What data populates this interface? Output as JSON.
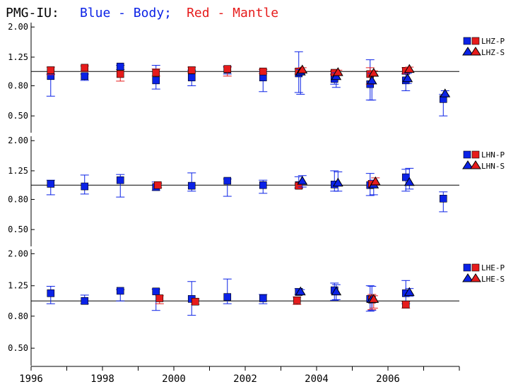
{
  "header": {
    "prefix": "PMG-IU:",
    "blue_label": "Blue - Body;",
    "red_label": "Red - Mantle"
  },
  "colors": {
    "body": "#0b22e6",
    "mantle": "#e61b1b",
    "axis": "#000000"
  },
  "chart_data": {
    "type": "scatter",
    "y_scale": "log",
    "x_ticks": [
      1996,
      1998,
      2000,
      2002,
      2004,
      2006
    ],
    "x_range": [
      1996,
      2008
    ],
    "y_ticks": [
      "0.50",
      "0.80",
      "1.25",
      "2.00"
    ],
    "y_range": [
      0.42,
      2.05
    ],
    "reference_line": 1.0,
    "panels": [
      {
        "name": "LHZ",
        "legend": [
          "LHZ-P",
          "LHZ-S"
        ],
        "series": [
          {
            "station": "LHZ-P",
            "kind": "body",
            "marker": "square",
            "points": [
              {
                "x": 1996.55,
                "y": 0.93,
                "lo": 0.68,
                "hi": 0.96
              },
              {
                "x": 1997.5,
                "y": 0.93,
                "lo": 0.87,
                "hi": 0.96
              },
              {
                "x": 1998.5,
                "y": 1.08,
                "lo": 1.03,
                "hi": 1.1
              },
              {
                "x": 1999.5,
                "y": 0.87,
                "lo": 0.76,
                "hi": 1.1
              },
              {
                "x": 2000.5,
                "y": 0.91,
                "lo": 0.8,
                "hi": 1.02
              },
              {
                "x": 2001.5,
                "y": 1.03,
                "lo": 0.96,
                "hi": 1.08
              },
              {
                "x": 2002.5,
                "y": 0.91,
                "lo": 0.73,
                "hi": 1.0
              },
              {
                "x": 2003.5,
                "y": 0.97,
                "lo": 0.72,
                "hi": 1.36
              },
              {
                "x": 2004.5,
                "y": 0.89,
                "lo": 0.82,
                "hi": 0.96
              },
              {
                "x": 2005.5,
                "y": 0.82,
                "lo": 0.64,
                "hi": 1.2
              },
              {
                "x": 2006.5,
                "y": 0.87,
                "lo": 0.74,
                "hi": 0.96
              },
              {
                "x": 2007.55,
                "y": 0.65,
                "lo": 0.5,
                "hi": 0.7
              }
            ]
          },
          {
            "station": "LHZ-P",
            "kind": "mantle",
            "marker": "square",
            "points": [
              {
                "x": 1996.55,
                "y": 1.02,
                "lo": 0.95,
                "hi": 1.07
              },
              {
                "x": 1997.5,
                "y": 1.06,
                "lo": 1.0,
                "hi": 1.09
              },
              {
                "x": 1998.5,
                "y": 0.96,
                "lo": 0.86,
                "hi": 1.0
              },
              {
                "x": 1999.5,
                "y": 0.98,
                "lo": 0.93,
                "hi": 1.04
              },
              {
                "x": 2000.5,
                "y": 1.02,
                "lo": 0.98,
                "hi": 1.07
              },
              {
                "x": 2001.5,
                "y": 1.04,
                "lo": 0.93,
                "hi": 1.07
              },
              {
                "x": 2002.5,
                "y": 1.0,
                "lo": 0.97,
                "hi": 1.03
              },
              {
                "x": 2003.5,
                "y": 1.0,
                "lo": 0.96,
                "hi": 1.04
              },
              {
                "x": 2004.5,
                "y": 0.98,
                "lo": 0.95,
                "hi": 1.01
              },
              {
                "x": 2005.5,
                "y": 0.96,
                "lo": 0.82,
                "hi": 1.06
              },
              {
                "x": 2006.5,
                "y": 1.01,
                "lo": 0.97,
                "hi": 1.06
              }
            ]
          },
          {
            "station": "LHZ-S",
            "kind": "body",
            "marker": "triangle",
            "points": [
              {
                "x": 2003.55,
                "y": 1.0,
                "lo": 0.7,
                "hi": 1.03
              },
              {
                "x": 2004.55,
                "y": 0.93,
                "lo": 0.78,
                "hi": 0.98
              },
              {
                "x": 2005.55,
                "y": 0.87,
                "lo": 0.64,
                "hi": 0.97
              },
              {
                "x": 2006.55,
                "y": 0.9,
                "lo": 0.83,
                "hi": 0.97
              },
              {
                "x": 2007.6,
                "y": 0.71,
                "lo": 0.69,
                "hi": 0.74
              }
            ]
          },
          {
            "station": "LHZ-S",
            "kind": "mantle",
            "marker": "triangle",
            "points": [
              {
                "x": 2003.6,
                "y": 1.03,
                "lo": 0.99,
                "hi": 1.06
              },
              {
                "x": 2004.6,
                "y": 0.99,
                "lo": 0.96,
                "hi": 1.02
              },
              {
                "x": 2005.6,
                "y": 0.98,
                "lo": 0.95,
                "hi": 1.01
              },
              {
                "x": 2006.6,
                "y": 1.04,
                "lo": 1.0,
                "hi": 1.07
              }
            ]
          }
        ]
      },
      {
        "name": "LHN",
        "legend": [
          "LHN-P",
          "LHN-S"
        ],
        "series": [
          {
            "station": "LHN-P",
            "kind": "body",
            "marker": "square",
            "points": [
              {
                "x": 1996.55,
                "y": 1.02,
                "lo": 0.86,
                "hi": 1.08
              },
              {
                "x": 1997.5,
                "y": 0.98,
                "lo": 0.87,
                "hi": 1.17
              },
              {
                "x": 1998.5,
                "y": 1.08,
                "lo": 0.83,
                "hi": 1.18
              },
              {
                "x": 1999.5,
                "y": 0.97,
                "lo": 0.92,
                "hi": 1.05
              },
              {
                "x": 2000.5,
                "y": 0.99,
                "lo": 0.91,
                "hi": 1.21
              },
              {
                "x": 2001.5,
                "y": 1.07,
                "lo": 0.84,
                "hi": 1.1
              },
              {
                "x": 2002.5,
                "y": 1.0,
                "lo": 0.88,
                "hi": 1.08
              },
              {
                "x": 2003.5,
                "y": 1.0,
                "lo": 0.95,
                "hi": 1.14
              },
              {
                "x": 2004.5,
                "y": 1.01,
                "lo": 0.91,
                "hi": 1.25
              },
              {
                "x": 2005.5,
                "y": 1.0,
                "lo": 0.85,
                "hi": 1.2
              },
              {
                "x": 2006.5,
                "y": 1.13,
                "lo": 0.91,
                "hi": 1.28
              },
              {
                "x": 2007.55,
                "y": 0.81,
                "lo": 0.66,
                "hi": 0.9
              }
            ]
          },
          {
            "station": "LHN-P",
            "kind": "mantle",
            "marker": "square",
            "points": [
              {
                "x": 1999.55,
                "y": 1.0,
                "lo": 0.96,
                "hi": 1.03
              },
              {
                "x": 2003.5,
                "y": 0.99,
                "lo": 0.96,
                "hi": 1.02
              },
              {
                "x": 2005.55,
                "y": 1.02,
                "lo": 0.97,
                "hi": 1.07
              }
            ]
          },
          {
            "station": "LHN-S",
            "kind": "body",
            "marker": "triangle",
            "points": [
              {
                "x": 2003.6,
                "y": 1.07,
                "lo": 0.97,
                "hi": 1.16
              },
              {
                "x": 2004.6,
                "y": 1.04,
                "lo": 0.91,
                "hi": 1.23
              },
              {
                "x": 2005.6,
                "y": 1.01,
                "lo": 0.86,
                "hi": 1.08
              },
              {
                "x": 2006.6,
                "y": 1.05,
                "lo": 0.94,
                "hi": 1.3
              }
            ]
          },
          {
            "station": "LHN-S",
            "kind": "mantle",
            "marker": "triangle",
            "points": [
              {
                "x": 2005.65,
                "y": 1.06,
                "lo": 1.0,
                "hi": 1.12
              }
            ]
          }
        ]
      },
      {
        "name": "LHE",
        "legend": [
          "LHE-P",
          "LHE-S"
        ],
        "series": [
          {
            "station": "LHE-P",
            "kind": "body",
            "marker": "square",
            "points": [
              {
                "x": 1996.55,
                "y": 1.12,
                "lo": 0.96,
                "hi": 1.24
              },
              {
                "x": 1997.5,
                "y": 1.0,
                "lo": 0.96,
                "hi": 1.09
              },
              {
                "x": 1998.5,
                "y": 1.16,
                "lo": 1.0,
                "hi": 1.18
              },
              {
                "x": 1999.5,
                "y": 1.15,
                "lo": 0.87,
                "hi": 1.19
              },
              {
                "x": 2000.5,
                "y": 1.03,
                "lo": 0.81,
                "hi": 1.33
              },
              {
                "x": 2001.5,
                "y": 1.06,
                "lo": 0.96,
                "hi": 1.38
              },
              {
                "x": 2002.5,
                "y": 1.04,
                "lo": 0.96,
                "hi": 1.1
              },
              {
                "x": 2003.5,
                "y": 1.14,
                "lo": 1.1,
                "hi": 1.2
              },
              {
                "x": 2004.5,
                "y": 1.17,
                "lo": 1.01,
                "hi": 1.3
              },
              {
                "x": 2005.5,
                "y": 1.03,
                "lo": 0.86,
                "hi": 1.25
              },
              {
                "x": 2006.5,
                "y": 1.12,
                "lo": 0.96,
                "hi": 1.35
              }
            ]
          },
          {
            "station": "LHE-P",
            "kind": "mantle",
            "marker": "square",
            "points": [
              {
                "x": 1999.6,
                "y": 1.04,
                "lo": 0.96,
                "hi": 1.08
              },
              {
                "x": 2000.6,
                "y": 0.99,
                "lo": 0.95,
                "hi": 1.03
              },
              {
                "x": 2003.45,
                "y": 1.01,
                "lo": 0.95,
                "hi": 1.06
              },
              {
                "x": 2005.55,
                "y": 1.02,
                "lo": 0.88,
                "hi": 1.1
              },
              {
                "x": 2006.5,
                "y": 0.95,
                "lo": 0.9,
                "hi": 0.99
              }
            ]
          },
          {
            "station": "LHE-S",
            "kind": "body",
            "marker": "triangle",
            "points": [
              {
                "x": 2003.55,
                "y": 1.15,
                "lo": 1.12,
                "hi": 1.18
              },
              {
                "x": 2004.55,
                "y": 1.15,
                "lo": 1.02,
                "hi": 1.27
              },
              {
                "x": 2005.55,
                "y": 1.03,
                "lo": 0.87,
                "hi": 1.24
              },
              {
                "x": 2006.6,
                "y": 1.14,
                "lo": 1.07,
                "hi": 1.2
              }
            ]
          },
          {
            "station": "LHE-S",
            "kind": "mantle",
            "marker": "triangle",
            "points": [
              {
                "x": 2005.6,
                "y": 1.03,
                "lo": 0.9,
                "hi": 1.08
              }
            ]
          }
        ]
      }
    ]
  }
}
